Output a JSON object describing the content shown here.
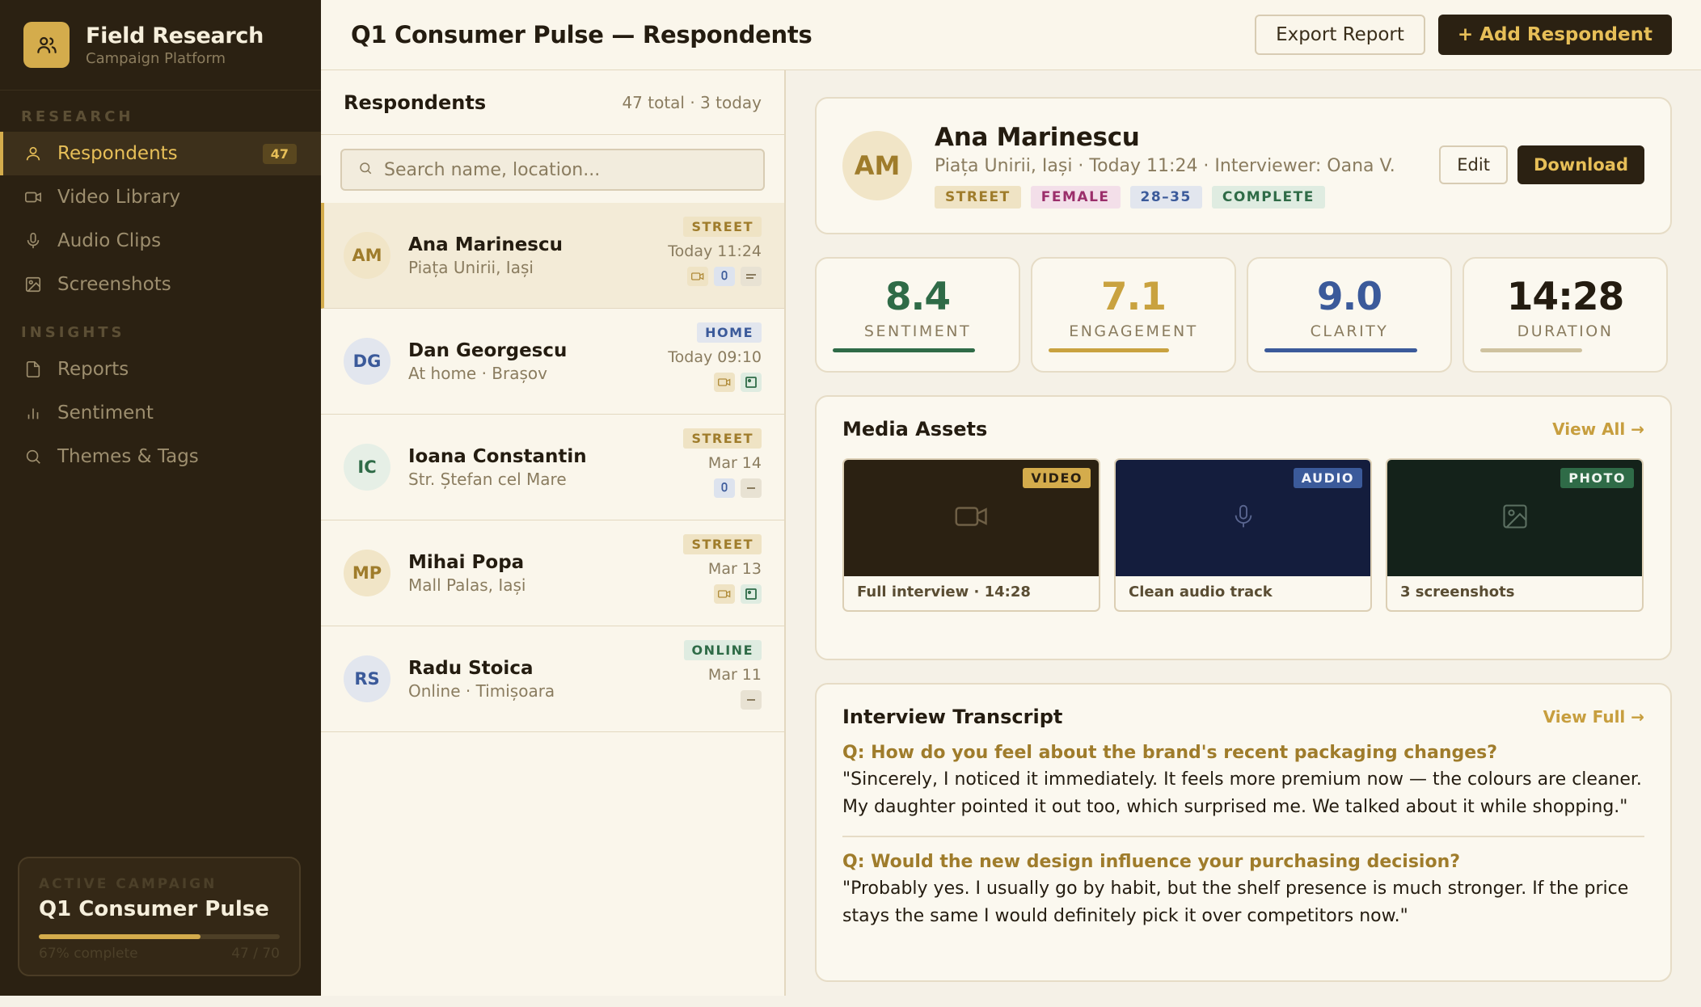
{
  "brand": {
    "title": "Field Research",
    "subtitle": "Campaign Platform",
    "icon": "users-icon"
  },
  "sidebar": {
    "sections": [
      {
        "label": "RESEARCH"
      },
      {
        "label": "INSIGHTS"
      }
    ],
    "items": [
      {
        "label": "Respondents",
        "icon": "user-icon",
        "count": "47",
        "active": true
      },
      {
        "label": "Video Library",
        "icon": "video-icon"
      },
      {
        "label": "Audio Clips",
        "icon": "mic-icon"
      },
      {
        "label": "Screenshots",
        "icon": "image-icon"
      },
      {
        "label": "Reports",
        "icon": "file-icon"
      },
      {
        "label": "Sentiment",
        "icon": "bar-chart-icon"
      },
      {
        "label": "Themes & Tags",
        "icon": "search-icon"
      }
    ],
    "campaign": {
      "label": "ACTIVE CAMPAIGN",
      "name": "Q1 Consumer Pulse",
      "progress_text": "67% complete",
      "progress": 0.67,
      "count": "47 / 70"
    }
  },
  "header": {
    "title": "Q1 Consumer Pulse — Respondents",
    "export_label": "Export Report",
    "add_label": "+ Add Respondent"
  },
  "list": {
    "title": "Respondents",
    "count": "47 total · 3 today",
    "search_placeholder": "Search name, location...",
    "rows": [
      {
        "initials": "AM",
        "name": "Ana Marinescu",
        "location": "Piața Unirii, Iași",
        "tag": "STREET",
        "time": "Today 11:24",
        "media": [
          "video",
          "audio",
          "transcript"
        ]
      },
      {
        "initials": "DG",
        "name": "Dan Georgescu",
        "location": "At home · Brașov",
        "tag": "HOME",
        "time": "Today 09:10",
        "media": [
          "video",
          "photo"
        ]
      },
      {
        "initials": "IC",
        "name": "Ioana Constantin",
        "location": "Str. Ștefan cel Mare",
        "tag": "STREET",
        "time": "Mar 14",
        "media": [
          "audio",
          "transcript"
        ]
      },
      {
        "initials": "MP",
        "name": "Mihai Popa",
        "location": "Mall Palas, Iași",
        "tag": "STREET",
        "time": "Mar 13",
        "media": [
          "video",
          "photo"
        ]
      },
      {
        "initials": "RS",
        "name": "Radu Stoica",
        "location": "Online · Timișoara",
        "tag": "ONLINE",
        "time": "Mar 11",
        "media": [
          "transcript"
        ]
      }
    ]
  },
  "profile": {
    "initials": "AM",
    "name": "Ana Marinescu",
    "meta": "Piața Unirii, Iași · Today 11:24 · Interviewer: Oana V.",
    "tags": [
      "STREET",
      "FEMALE",
      "28–35",
      "COMPLETE"
    ],
    "edit_label": "Edit",
    "download_label": "Download"
  },
  "stats": [
    {
      "value": "8.4",
      "label": "SENTIMENT",
      "color": "#2f6b47",
      "level": 0.84
    },
    {
      "value": "7.1",
      "label": "ENGAGEMENT",
      "color": "#c9a23f",
      "level": 0.71
    },
    {
      "value": "9.0",
      "label": "CLARITY",
      "color": "#3b5a9a",
      "level": 0.9
    },
    {
      "value": "14:28",
      "label": "DURATION",
      "color": "#cfc29f",
      "level": 0.6
    }
  ],
  "media": {
    "title": "Media Assets",
    "link": "View All →",
    "tiles": [
      {
        "badge": "VIDEO",
        "caption": "Full interview · 14:28",
        "icon": "video-icon"
      },
      {
        "badge": "AUDIO",
        "caption": "Clean audio track",
        "icon": "mic-icon"
      },
      {
        "badge": "PHOTO",
        "caption": "3 screenshots",
        "icon": "image-icon"
      }
    ]
  },
  "transcript": {
    "title": "Interview Transcript",
    "link": "View Full →",
    "items": [
      {
        "q": "Q: How do you feel about the brand's recent packaging changes?",
        "a": "\"Sincerely, I noticed it immediately. It feels more premium now — the colours are cleaner. My daughter pointed it out too, which surprised me. We talked about it while shopping.\""
      },
      {
        "q": "Q: Would the new design influence your purchasing decision?",
        "a": "\"Probably yes. I usually go by habit, but the shelf presence is much stronger. If the price stays the same I would definitely pick it over competitors now.\""
      }
    ]
  },
  "colors": {
    "accent": "#d4ac4c",
    "sidebar_bg": "#2b2112",
    "tag_street": "#efe3c4",
    "tag_home": "#e2e6ee",
    "tag_online": "#dfece1"
  }
}
